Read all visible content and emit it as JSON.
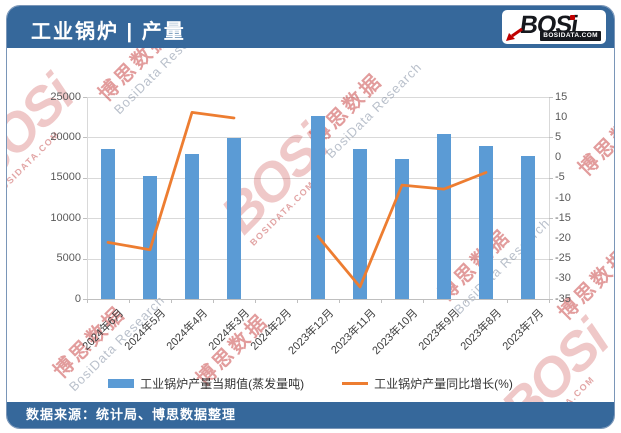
{
  "header": {
    "title": "工业锅炉 | 产量",
    "logo": {
      "brand": "BOSi",
      "domain": "BOSIDATA.COM"
    }
  },
  "footer": {
    "source": "数据来源：统计局、博思数据整理"
  },
  "watermark": {
    "brand": "BOSi",
    "domain": "BOSIDATA.COM",
    "name_cn": "博思数据",
    "name_en": "BosiData Research"
  },
  "colors": {
    "theme_blue": "#36689B",
    "bar_blue": "#5B9BD5",
    "line_orange": "#ED7D31",
    "grid_gray": "#D9D9D9",
    "axis_text": "#595959",
    "watermark_red": "#C00000"
  },
  "chart_data": {
    "type": "bar",
    "subtype": "dual-axis bar + line combo",
    "title": "工业锅炉 | 产量",
    "categories": [
      "2024年6月",
      "2024年5月",
      "2024年4月",
      "2024年3月",
      "2024年2月",
      "2023年12月",
      "2023年11月",
      "2023年10月",
      "2023年9月",
      "2023年8月",
      "2023年7月"
    ],
    "series": [
      {
        "name": "工业锅炉产量当期值(蒸发量吨)",
        "type": "bar",
        "axis": "left",
        "color": "#5B9BD5",
        "values": [
          18600,
          15200,
          17900,
          19900,
          null,
          22700,
          18600,
          17300,
          20400,
          18900,
          17700
        ]
      },
      {
        "name": "工业锅炉产量同比增长(%)",
        "type": "line",
        "axis": "right",
        "color": "#ED7D31",
        "values": [
          -21.0,
          -22.8,
          11.2,
          9.8,
          null,
          -19.5,
          -32.0,
          -6.8,
          -7.8,
          -3.7,
          null
        ]
      }
    ],
    "left_axis": {
      "min": 0,
      "max": 25000,
      "step": 5000,
      "ticks": [
        0,
        5000,
        10000,
        15000,
        20000,
        25000
      ]
    },
    "right_axis": {
      "min": -35,
      "max": 15,
      "step": 5,
      "ticks": [
        15,
        10,
        5,
        0,
        -5,
        -10,
        -15,
        -20,
        -25,
        -30,
        -35
      ]
    },
    "grid": true,
    "legend_position": "bottom",
    "x_labels_rotation": -45
  }
}
